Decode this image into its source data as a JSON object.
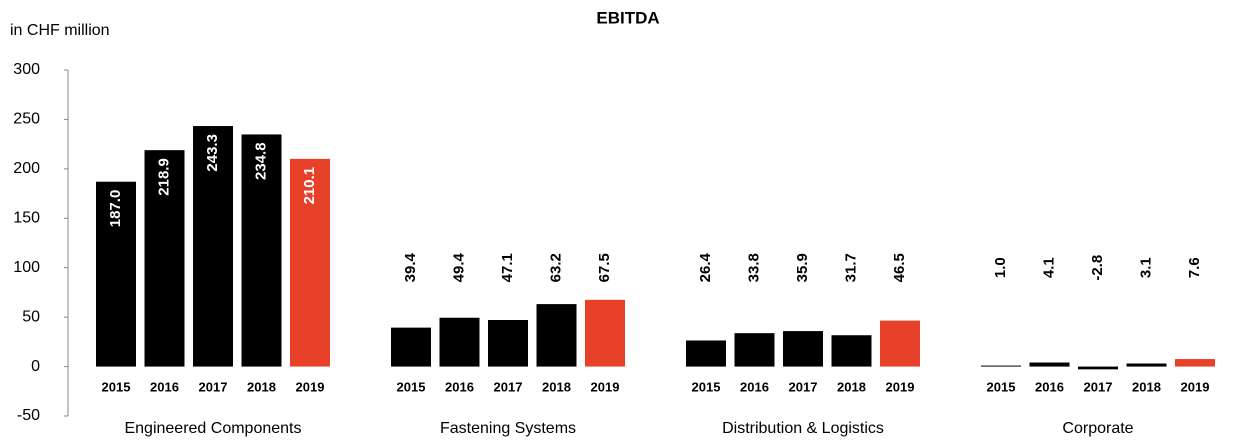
{
  "chart_data": {
    "type": "bar",
    "title": "EBITDA",
    "y_axis_label": "in CHF million",
    "categories": [
      "Engineered Components",
      "Fastening  Systems",
      "Distribution & Logistics",
      "Corporate"
    ],
    "series": [
      {
        "name": "2015",
        "color": "#000000",
        "values": [
          187.0,
          39.4,
          26.4,
          1.0
        ],
        "value_labels": [
          "187.0",
          "39.4",
          "26.4",
          "1.0"
        ]
      },
      {
        "name": "2016",
        "color": "#000000",
        "values": [
          218.9,
          49.4,
          33.8,
          4.1
        ]
      },
      {
        "name": "2017",
        "color": "#000000",
        "values": [
          243.3,
          47.1,
          35.9,
          -2.8
        ]
      },
      {
        "name": "2018",
        "color": "#000000",
        "values": [
          234.8,
          63.2,
          31.7,
          3.1
        ]
      },
      {
        "name": "2019",
        "color": "#e8412a",
        "values": [
          210.1,
          67.5,
          46.5,
          7.6
        ]
      }
    ],
    "ylim": [
      -50,
      300
    ],
    "yticks": [
      -50,
      0,
      50,
      100,
      150,
      200,
      250,
      300
    ],
    "grid": false
  }
}
